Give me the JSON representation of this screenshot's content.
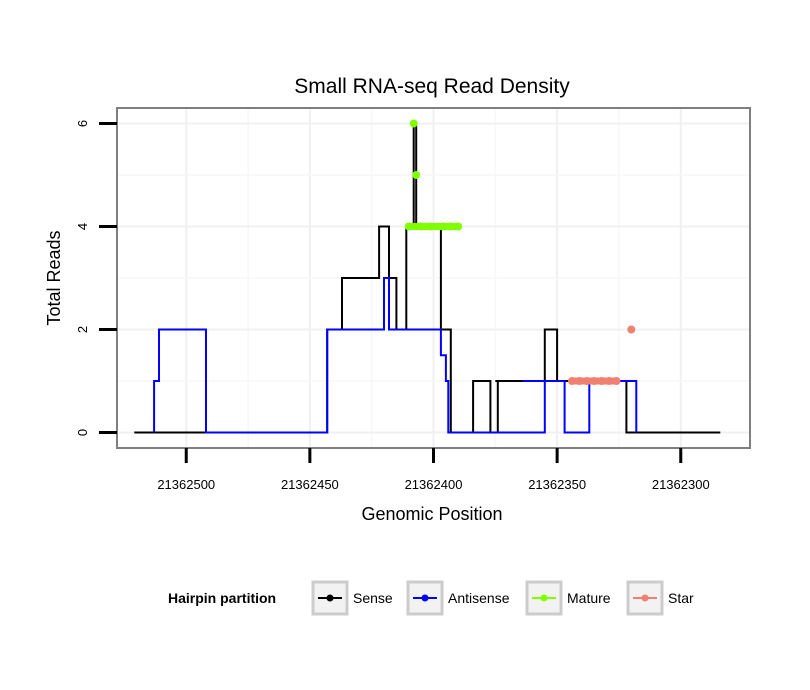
{
  "chart_data": {
    "type": "line",
    "title": "Small RNA-seq Read Density",
    "xlabel": "Genomic Position",
    "ylabel": "Total Reads",
    "xlim": [
      21362528,
      21362272
    ],
    "ylim": [
      -0.3,
      6.3
    ],
    "x_reversed": true,
    "x_ticks": [
      21362500,
      21362450,
      21362400,
      21362350,
      21362300
    ],
    "x_tick_labels": [
      "21362500",
      "21362450",
      "21362400",
      "21362350",
      "21362300"
    ],
    "y_ticks": [
      0,
      2,
      4,
      6
    ],
    "y_tick_labels": [
      "0",
      "2",
      "4",
      "6"
    ],
    "grid": true,
    "legend": {
      "title": "Hairpin partition",
      "position": "bottom",
      "entries": [
        "Sense",
        "Antisense",
        "Mature",
        "Star"
      ]
    },
    "series": [
      {
        "name": "Sense",
        "color": "#000000",
        "style": "step-line",
        "x": [
          21362521,
          21362443,
          21362443,
          21362437,
          21362437,
          21362434,
          21362434,
          21362422,
          21362422,
          21362418,
          21362418,
          21362415,
          21362415,
          21362411,
          21362411,
          21362408,
          21362408,
          21362407,
          21362407,
          21362397,
          21362397,
          21362393,
          21362393,
          21362384,
          21362384,
          21362382,
          21362382,
          21362377,
          21362377,
          21362374,
          21362374,
          21362375,
          21362375,
          21362355,
          21362355,
          21362350,
          21362350,
          21362322,
          21362322,
          21362284
        ],
        "y": [
          0,
          0,
          2,
          2,
          3,
          3,
          3,
          3,
          4,
          4,
          3,
          3,
          2,
          2,
          4,
          4,
          6,
          6,
          4,
          4,
          2,
          2,
          0,
          0,
          1,
          1,
          1,
          1,
          0,
          0,
          1,
          1,
          1,
          1,
          2,
          2,
          1,
          1,
          0,
          0
        ]
      },
      {
        "name": "Antisense",
        "color": "#0000ff",
        "style": "step-line",
        "x": [
          21362513,
          21362513,
          21362511,
          21362511,
          21362508,
          21362508,
          21362492,
          21362492,
          21362443,
          21362443,
          21362420,
          21362420,
          21362418,
          21362418,
          21362413,
          21362413,
          21362397,
          21362397,
          21362395,
          21362395,
          21362394,
          21362394,
          21362385,
          21362385,
          21362355,
          21362355,
          21362364,
          21362364,
          21362353,
          21362353,
          21362347,
          21362347,
          21362337,
          21362337,
          21362328,
          21362328,
          21362318,
          21362318
        ],
        "y": [
          0,
          1,
          1,
          2,
          2,
          2,
          2,
          0,
          0,
          2,
          2,
          3,
          3,
          2,
          2,
          2,
          2,
          1.5,
          1.5,
          1,
          1,
          0,
          0,
          0,
          0,
          1,
          1,
          1,
          1,
          1,
          1,
          0,
          0,
          1,
          1,
          1,
          1,
          0
        ]
      },
      {
        "name": "Mature",
        "color": "#80ff00",
        "style": "dots",
        "x": [
          21362408,
          21362407,
          21362410,
          21362405,
          21362401,
          21362396,
          21362393,
          21362390
        ],
        "y": [
          6,
          5,
          4,
          4,
          4,
          4,
          4,
          4
        ]
      },
      {
        "name": "Star",
        "color": "#f08070",
        "style": "dots",
        "x": [
          21362344,
          21362341,
          21362338,
          21362335,
          21362332,
          21362329,
          21362326,
          21362320
        ],
        "y": [
          1,
          1,
          1,
          1,
          1,
          1,
          1,
          2
        ]
      }
    ]
  }
}
